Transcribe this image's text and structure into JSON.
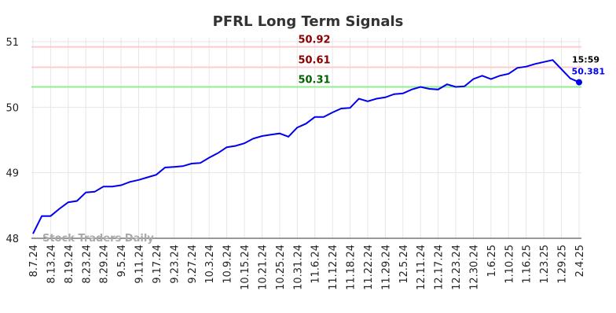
{
  "chart_data": {
    "type": "line",
    "title": "PFRL Long Term Signals",
    "categories": [
      "8.7.24",
      null,
      "8.13.24",
      null,
      "8.19.24",
      null,
      "8.23.24",
      null,
      "8.29.24",
      null,
      "9.5.24",
      null,
      "9.11.24",
      null,
      "9.17.24",
      null,
      "9.23.24",
      null,
      "9.27.24",
      null,
      "10.3.24",
      null,
      "10.9.24",
      null,
      "10.15.24",
      null,
      "10.21.24",
      null,
      "10.25.24",
      null,
      "10.31.24",
      null,
      "11.6.24",
      null,
      "11.12.24",
      null,
      "11.18.24",
      null,
      "11.22.24",
      null,
      "11.29.24",
      null,
      "12.5.24",
      null,
      "12.11.24",
      null,
      "12.17.24",
      null,
      "12.23.24",
      null,
      "12.30.24",
      null,
      "1.6.25",
      null,
      "1.10.25",
      null,
      "1.16.25",
      null,
      "1.23.25",
      null,
      "1.29.25",
      null,
      "2.4.25"
    ],
    "values": [
      48.07,
      48.34,
      48.34,
      48.45,
      48.55,
      48.57,
      48.7,
      48.71,
      48.79,
      48.79,
      48.81,
      48.86,
      48.89,
      48.93,
      48.97,
      49.08,
      49.09,
      49.1,
      49.14,
      49.15,
      49.23,
      49.3,
      49.39,
      49.41,
      49.45,
      49.52,
      49.56,
      49.58,
      49.6,
      49.55,
      49.69,
      49.75,
      49.85,
      49.85,
      49.92,
      49.98,
      49.99,
      50.13,
      50.09,
      50.13,
      50.15,
      50.2,
      50.21,
      50.27,
      50.31,
      50.28,
      50.27,
      50.35,
      50.31,
      50.32,
      50.43,
      50.48,
      50.43,
      50.48,
      50.51,
      50.6,
      50.62,
      50.66,
      50.69,
      50.72,
      50.58,
      50.44,
      50.381
    ],
    "color": "#0000ee",
    "ylim": [
      48,
      51
    ],
    "yticks": [
      48,
      49,
      50,
      51
    ],
    "grid": true,
    "hlines": [
      {
        "value": 50.92,
        "color": "#ffcccc",
        "label_color": "#8b0000"
      },
      {
        "value": 50.61,
        "color": "#ffcccc",
        "label_color": "#8b0000"
      },
      {
        "value": 50.31,
        "color": "#90ee90",
        "label_color": "#006400"
      }
    ],
    "last_time": "15:59",
    "watermark": "Stock Traders Daily"
  }
}
